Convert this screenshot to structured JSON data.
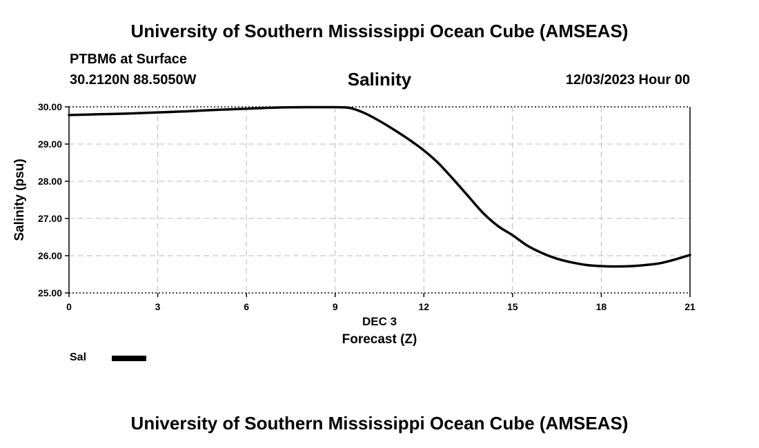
{
  "header": {
    "title": "University of Southern Mississippi Ocean Cube (AMSEAS)",
    "station": "PTBM6 at Surface",
    "coords": "30.2120N  88.5050W",
    "plot_title": "Salinity",
    "forecast_time": "12/03/2023 Hour 00"
  },
  "footer": {
    "title": "University of Southern Mississippi Ocean Cube (AMSEAS)"
  },
  "legend": {
    "label": "Sal",
    "color": "#000000"
  },
  "chart_data": {
    "type": "line",
    "title": "Salinity",
    "xlabel_date": "DEC 3",
    "xlabel": "Forecast (Z)",
    "ylabel": "Salinity (psu)",
    "xlim": [
      0,
      21
    ],
    "ylim": [
      25,
      30
    ],
    "x_ticks": [
      0,
      3,
      6,
      9,
      12,
      15,
      18,
      21
    ],
    "x_tick_labels": [
      "0",
      "3",
      "6",
      "9",
      "12",
      "15",
      "18",
      "21"
    ],
    "y_ticks": [
      25,
      26,
      27,
      28,
      29,
      30
    ],
    "y_tick_labels": [
      "25.00",
      "26.00",
      "27.00",
      "28.00",
      "29.00",
      "30.00"
    ],
    "grid": true,
    "series": [
      {
        "name": "Sal",
        "color": "#000000",
        "x": [
          0,
          1,
          2,
          3,
          4,
          5,
          6,
          7,
          8,
          9,
          9.5,
          10,
          10.5,
          11,
          11.5,
          12,
          12.5,
          13,
          13.5,
          14,
          14.5,
          15,
          15.5,
          16,
          16.5,
          17,
          17.5,
          18,
          18.5,
          19,
          19.5,
          20,
          20.5,
          21
        ],
        "y": [
          29.78,
          29.8,
          29.82,
          29.85,
          29.88,
          29.92,
          29.95,
          29.98,
          29.99,
          29.99,
          29.97,
          29.83,
          29.62,
          29.38,
          29.12,
          28.83,
          28.48,
          28.05,
          27.6,
          27.15,
          26.8,
          26.55,
          26.27,
          26.07,
          25.92,
          25.82,
          25.75,
          25.72,
          25.71,
          25.72,
          25.75,
          25.8,
          25.9,
          26.02
        ]
      }
    ]
  }
}
